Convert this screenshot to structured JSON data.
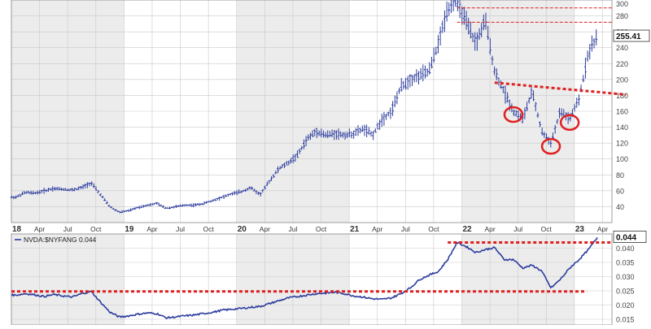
{
  "colors": {
    "price": "#2b3c9e",
    "ratio": "#2b3c9e",
    "annotation_red": "#e02020",
    "bg_shade": "#ececec",
    "bg_white": "#ffffff",
    "grid": "#c9c9c9",
    "tick_text": "#444444",
    "last_box": "#ffffff"
  },
  "chart_data": [
    {
      "type": "line",
      "subtype": "ohlc-bars",
      "grid": true,
      "y_axis_side": "right",
      "ylim": [
        20,
        300
      ],
      "y_ticks": [
        40,
        60,
        80,
        100,
        120,
        140,
        160,
        180,
        200,
        220,
        240,
        260,
        280,
        300
      ],
      "x_tick_labels": [
        "18",
        "Apr",
        "Jul",
        "Oct",
        "19",
        "Apr",
        "Jul",
        "Oct",
        "20",
        "Apr",
        "Jul",
        "Oct",
        "21",
        "Apr",
        "Jul",
        "Oct",
        "22",
        "Apr",
        "Jul",
        "Oct",
        "23",
        "Apr"
      ],
      "last_value_label": "255.41",
      "series": [
        {
          "x": [
            "2018-01",
            "2018-02",
            "2018-03",
            "2018-04",
            "2018-05",
            "2018-06",
            "2018-07",
            "2018-08",
            "2018-09",
            "2018-10",
            "2018-11",
            "2018-12",
            "2019-01",
            "2019-02",
            "2019-03",
            "2019-04",
            "2019-05",
            "2019-06",
            "2019-07",
            "2019-08",
            "2019-09",
            "2019-10",
            "2019-11",
            "2019-12",
            "2020-01",
            "2020-02",
            "2020-03",
            "2020-04",
            "2020-05",
            "2020-06",
            "2020-07",
            "2020-08",
            "2020-09",
            "2020-10",
            "2020-11",
            "2020-12",
            "2021-01",
            "2021-02",
            "2021-03",
            "2021-04",
            "2021-05",
            "2021-06",
            "2021-07",
            "2021-08",
            "2021-09",
            "2021-10",
            "2021-11",
            "2021-12",
            "2022-01",
            "2022-02",
            "2022-03",
            "2022-04",
            "2022-05",
            "2022-06",
            "2022-07",
            "2022-08",
            "2022-09",
            "2022-10",
            "2022-11",
            "2022-12",
            "2023-01",
            "2023-02",
            "2023-03"
          ],
          "values": [
            52,
            58,
            57,
            60,
            63,
            62,
            61,
            64,
            70,
            55,
            40,
            33,
            35,
            39,
            42,
            44,
            38,
            40,
            42,
            42,
            44,
            48,
            52,
            56,
            59,
            64,
            55,
            72,
            88,
            95,
            105,
            125,
            135,
            130,
            132,
            130,
            132,
            138,
            130,
            150,
            160,
            190,
            200,
            205,
            210,
            245,
            290,
            300,
            270,
            245,
            275,
            210,
            185,
            160,
            150,
            185,
            135,
            120,
            160,
            150,
            175,
            235,
            255
          ]
        }
      ],
      "annotations": {
        "resistance_lines": [
          272,
          290
        ],
        "neckline": {
          "from": [
            "2022-04",
            196
          ],
          "to": [
            "2023-06",
            181
          ]
        },
        "circled_lows": [
          "2022-06",
          "2022-10",
          "2022-12"
        ]
      }
    },
    {
      "type": "line",
      "grid": true,
      "y_axis_side": "right",
      "ylim": [
        0.013,
        0.045
      ],
      "y_ticks": [
        0.015,
        0.02,
        0.025,
        0.03,
        0.035,
        0.04
      ],
      "y_tick_labels": [
        "0.015",
        "0.020",
        "0.025",
        "0.030",
        "0.035",
        "0.040"
      ],
      "legend": "NVDA:$NYFANG 0.044",
      "last_value_label": "0.044",
      "series": [
        {
          "x": [
            "2018-01",
            "2018-02",
            "2018-03",
            "2018-04",
            "2018-05",
            "2018-06",
            "2018-07",
            "2018-08",
            "2018-09",
            "2018-10",
            "2018-11",
            "2018-12",
            "2019-01",
            "2019-02",
            "2019-03",
            "2019-04",
            "2019-05",
            "2019-06",
            "2019-07",
            "2019-08",
            "2019-09",
            "2019-10",
            "2019-11",
            "2019-12",
            "2020-01",
            "2020-02",
            "2020-03",
            "2020-04",
            "2020-05",
            "2020-06",
            "2020-07",
            "2020-08",
            "2020-09",
            "2020-10",
            "2020-11",
            "2020-12",
            "2021-01",
            "2021-02",
            "2021-03",
            "2021-04",
            "2021-05",
            "2021-06",
            "2021-07",
            "2021-08",
            "2021-09",
            "2021-10",
            "2021-11",
            "2021-12",
            "2022-01",
            "2022-02",
            "2022-03",
            "2022-04",
            "2022-05",
            "2022-06",
            "2022-07",
            "2022-08",
            "2022-09",
            "2022-10",
            "2022-11",
            "2022-12",
            "2023-01",
            "2023-02",
            "2023-03"
          ],
          "values": [
            0.0235,
            0.024,
            0.0236,
            0.023,
            0.0237,
            0.0232,
            0.0228,
            0.024,
            0.0248,
            0.021,
            0.0175,
            0.0158,
            0.0162,
            0.0168,
            0.0172,
            0.017,
            0.0155,
            0.0158,
            0.0162,
            0.0165,
            0.017,
            0.0175,
            0.0182,
            0.0185,
            0.0188,
            0.0192,
            0.0195,
            0.0205,
            0.0215,
            0.0225,
            0.023,
            0.0235,
            0.024,
            0.0242,
            0.0245,
            0.024,
            0.0232,
            0.0228,
            0.0222,
            0.022,
            0.0225,
            0.024,
            0.026,
            0.029,
            0.0305,
            0.0318,
            0.036,
            0.042,
            0.0405,
            0.0385,
            0.0395,
            0.0402,
            0.036,
            0.036,
            0.033,
            0.034,
            0.032,
            0.026,
            0.029,
            0.033,
            0.036,
            0.0395,
            0.044
          ]
        }
      ],
      "annotations": {
        "support_line": 0.0248,
        "resistance_line": 0.042
      }
    }
  ]
}
